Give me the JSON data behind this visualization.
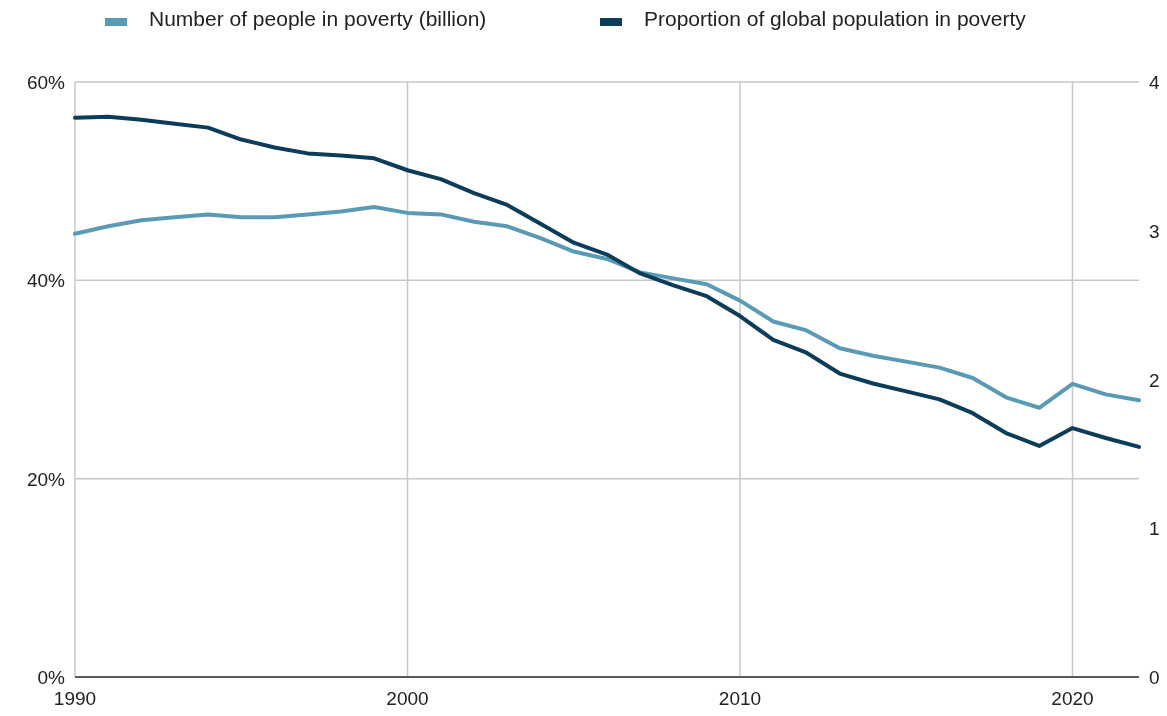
{
  "chart_data": {
    "type": "line",
    "x": [
      1990,
      1991,
      1992,
      1993,
      1994,
      1995,
      1996,
      1997,
      1998,
      1999,
      2000,
      2001,
      2002,
      2003,
      2004,
      2005,
      2006,
      2007,
      2008,
      2009,
      2010,
      2011,
      2012,
      2013,
      2014,
      2015,
      2016,
      2017,
      2018,
      2019,
      2020,
      2021,
      2022
    ],
    "series": [
      {
        "name": "Number of people in poverty (billion)",
        "color": "#5b9ab5",
        "axis": "y2",
        "values": [
          2.98,
          3.03,
          3.07,
          3.09,
          3.11,
          3.09,
          3.09,
          3.11,
          3.13,
          3.16,
          3.12,
          3.11,
          3.06,
          3.03,
          2.95,
          2.86,
          2.81,
          2.72,
          2.68,
          2.64,
          2.53,
          2.39,
          2.33,
          2.21,
          2.16,
          2.12,
          2.08,
          2.01,
          1.88,
          1.81,
          1.97,
          1.9,
          1.86
        ]
      },
      {
        "name": "Proportion of global population in poverty",
        "color": "#0b3c5a",
        "values": [
          56.4,
          56.5,
          56.2,
          55.8,
          55.4,
          54.2,
          53.4,
          52.8,
          52.6,
          52.3,
          51.1,
          50.2,
          48.8,
          47.6,
          45.7,
          43.8,
          42.6,
          40.7,
          39.5,
          38.4,
          36.4,
          34.0,
          32.7,
          30.6,
          29.6,
          28.8,
          28.0,
          26.6,
          24.6,
          23.3,
          25.1,
          24.1,
          23.2
        ]
      }
    ],
    "xlim": [
      1990,
      2022
    ],
    "xticks": [
      1990,
      2000,
      2010,
      2020
    ],
    "ylim": [
      0,
      60
    ],
    "yticks": [
      {
        "value": 0,
        "label": "0%"
      },
      {
        "value": 20,
        "label": "20%"
      },
      {
        "value": 40,
        "label": "40%"
      },
      {
        "value": 60,
        "label": "60%"
      }
    ],
    "y2lim": [
      0,
      4
    ],
    "y2ticks": [
      0,
      1,
      2,
      3,
      4
    ],
    "grid": true,
    "legend": "top",
    "line_style": "solid"
  }
}
